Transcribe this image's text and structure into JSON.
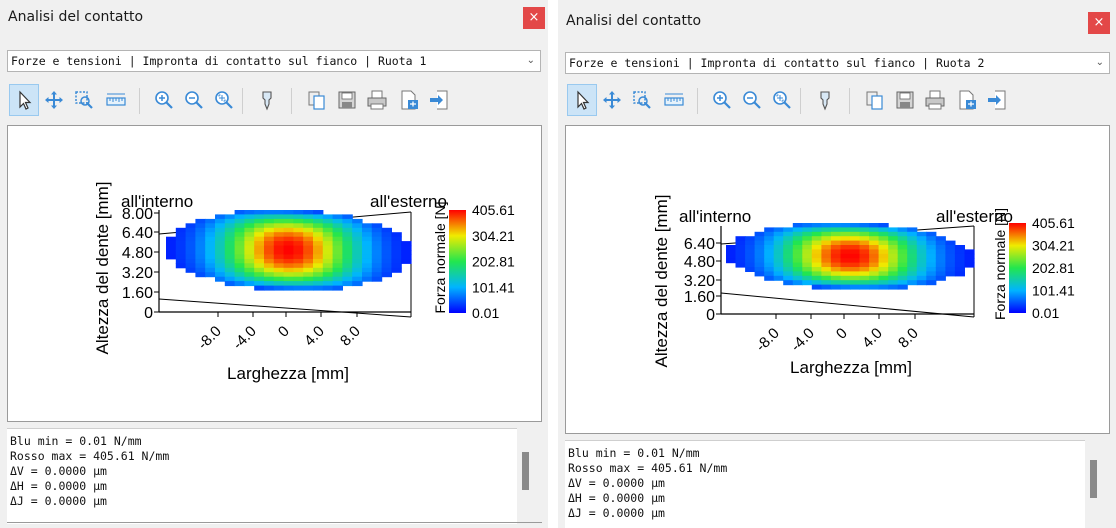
{
  "windows": [
    {
      "title": "Analisi del contatto",
      "close_label": "×",
      "dropdown": "Forze e tensioni | Impronta di contatto sul fianco | Ruota 1",
      "chart": {
        "y_axis_label": "Altezza del dente [mm]",
        "x_axis_label": "Larghezza [mm]",
        "y_ticks": [
          "8.00",
          "6.40",
          "4.80",
          "3.20",
          "1.60",
          "0"
        ],
        "x_ticks": [
          "-8.0",
          "-4.0",
          "0",
          "4.0",
          "8.0"
        ],
        "inner_label": "all'interno",
        "outer_label": "all'esterno",
        "legend_title": "Forza normale [N]",
        "legend_values": [
          "405.61",
          "304.21",
          "202.81",
          "101.41",
          "0.01"
        ]
      },
      "status_lines": [
        "Blu min = 0.01 N/mm",
        "Rosso max = 405.61 N/mm",
        "ΔV = 0.0000 µm",
        "ΔH = 0.0000 µm",
        "ΔJ = 0.0000 µm"
      ]
    },
    {
      "title": "Analisi del contatto",
      "close_label": "×",
      "dropdown": "Forze e tensioni | Impronta di contatto sul fianco | Ruota 2",
      "chart": {
        "y_axis_label": "Altezza del dente [mm]",
        "x_axis_label": "Larghezza [mm]",
        "y_ticks": [
          "6.40",
          "4.80",
          "3.20",
          "1.60",
          "0"
        ],
        "x_ticks": [
          "-8.0",
          "-4.0",
          "0",
          "4.0",
          "8.0"
        ],
        "inner_label": "all'interno",
        "outer_label": "all'esterno",
        "legend_title": "Forza normale [N]",
        "legend_values": [
          "405.61",
          "304.21",
          "202.81",
          "101.41",
          "0.01"
        ]
      },
      "status_lines": [
        "Blu min = 0.01 N/mm",
        "Rosso max = 405.61 N/mm",
        "ΔV = 0.0000 µm",
        "ΔH = 0.0000 µm",
        "ΔJ = 0.0000 µm"
      ]
    }
  ],
  "toolbar_icons": [
    "select-pointer-icon",
    "pan-icon",
    "zoom-window-icon",
    "measure-ruler-icon",
    "zoom-in-icon",
    "zoom-out-icon",
    "zoom-fit-icon",
    "pin-icon",
    "copy-icon",
    "save-icon",
    "print-icon",
    "export-file-icon",
    "import-arrow-icon"
  ],
  "colors": {
    "close_button": "#e34848",
    "active_tool": "#cce4f7",
    "colormap_low": "#0000ff",
    "colormap_mid": "#22e64e",
    "colormap_high": "#ff0000"
  }
}
